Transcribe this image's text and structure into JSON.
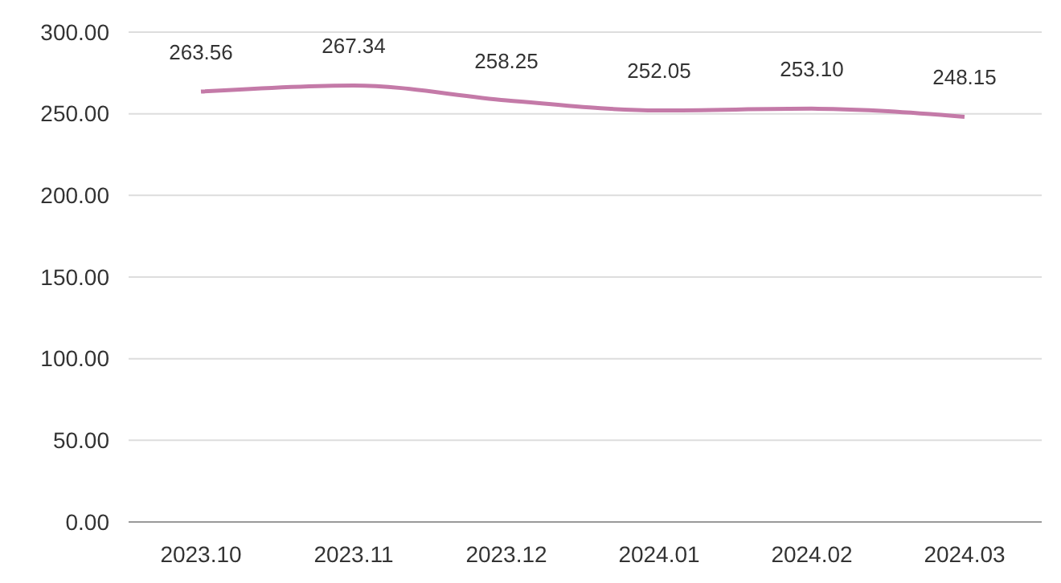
{
  "chart_data": {
    "type": "line",
    "categories": [
      "2023.10",
      "2023.11",
      "2023.12",
      "2024.01",
      "2024.02",
      "2024.03"
    ],
    "values": [
      263.56,
      267.34,
      258.25,
      252.05,
      253.1,
      248.15
    ],
    "value_labels": [
      "263.56",
      "267.34",
      "258.25",
      "252.05",
      "253.10",
      "248.15"
    ],
    "color": "#c47aa8",
    "ylim": [
      0,
      300
    ],
    "yticks": [
      {
        "value": 0,
        "label": "0.00"
      },
      {
        "value": 50,
        "label": "50.00"
      },
      {
        "value": 100,
        "label": "100.00"
      },
      {
        "value": 150,
        "label": "150.00"
      },
      {
        "value": 200,
        "label": "200.00"
      },
      {
        "value": 250,
        "label": "250.00"
      },
      {
        "value": 300,
        "label": "300.00"
      }
    ],
    "grid": "y",
    "marker": "none"
  }
}
